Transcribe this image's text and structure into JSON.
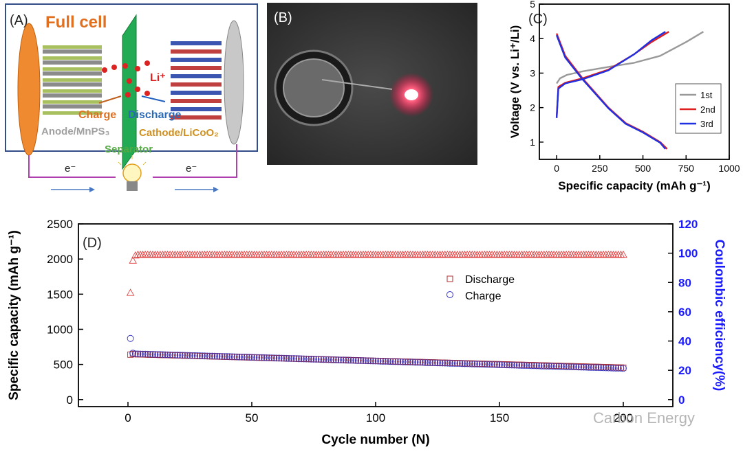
{
  "panel_a": {
    "label": "(A)",
    "title": "Full cell",
    "ion": "Li⁺",
    "charge": "Charge",
    "discharge": "Discharge",
    "anode": "Anode/MnPS₃",
    "cathode": "Cathode/LiCoO₂",
    "separator": "Separator",
    "electron": "e⁻",
    "colors": {
      "title": "#e07020",
      "anode": "#f08a30",
      "separator": "#22aa55",
      "ion": "#dd2222"
    }
  },
  "panel_b": {
    "label": "(B)"
  },
  "chart_data": [
    {
      "type": "line",
      "label": "(C)",
      "xlabel": "Specific capacity (mAh g⁻¹)",
      "ylabel": "Voltage (V vs. Li⁺/Li)",
      "xlim": [
        -100,
        1000
      ],
      "ylim": [
        0.5,
        5
      ],
      "x_ticks": [
        "0",
        "250",
        "500",
        "750",
        "1000"
      ],
      "y_ticks": [
        "1",
        "2",
        "3",
        "4",
        "5"
      ],
      "legend": "right",
      "series": [
        {
          "name": "1st",
          "color": "#999999",
          "charge": [
            [
              0,
              2.7
            ],
            [
              20,
              2.85
            ],
            [
              60,
              2.95
            ],
            [
              150,
              3.05
            ],
            [
              300,
              3.18
            ],
            [
              450,
              3.3
            ],
            [
              600,
              3.5
            ],
            [
              750,
              3.9
            ],
            [
              850,
              4.2
            ]
          ]
        },
        {
          "name": "2nd",
          "color": "#e02020",
          "charge": [
            [
              0,
              1.7
            ],
            [
              10,
              2.6
            ],
            [
              50,
              2.72
            ],
            [
              150,
              2.85
            ],
            [
              300,
              3.1
            ],
            [
              450,
              3.55
            ],
            [
              550,
              3.9
            ],
            [
              650,
              4.2
            ]
          ],
          "discharge": [
            [
              0,
              4.15
            ],
            [
              50,
              3.5
            ],
            [
              150,
              2.85
            ],
            [
              300,
              2.0
            ],
            [
              400,
              1.55
            ],
            [
              500,
              1.3
            ],
            [
              600,
              1.0
            ],
            [
              640,
              0.8
            ]
          ]
        },
        {
          "name": "3rd",
          "color": "#2030e0",
          "charge": [
            [
              0,
              1.7
            ],
            [
              10,
              2.55
            ],
            [
              50,
              2.7
            ],
            [
              150,
              2.82
            ],
            [
              300,
              3.08
            ],
            [
              450,
              3.55
            ],
            [
              550,
              3.95
            ],
            [
              630,
              4.2
            ]
          ],
          "discharge": [
            [
              0,
              4.1
            ],
            [
              50,
              3.45
            ],
            [
              150,
              2.82
            ],
            [
              300,
              1.98
            ],
            [
              400,
              1.53
            ],
            [
              500,
              1.28
            ],
            [
              600,
              0.98
            ],
            [
              630,
              0.8
            ]
          ]
        }
      ]
    },
    {
      "type": "scatter",
      "label": "(D)",
      "xlabel": "Cycle number (N)",
      "ylabel": "Specific capacity (mAh g⁻¹)",
      "y2label": "Coulombic efficiency(%)",
      "xlim": [
        -20,
        220
      ],
      "ylim": [
        -100,
        2500
      ],
      "y2lim": [
        0,
        120
      ],
      "x_ticks": [
        "0",
        "50",
        "100",
        "150",
        "200"
      ],
      "y_ticks": [
        "0",
        "500",
        "1000",
        "1500",
        "2000",
        "2500"
      ],
      "y2_ticks": [
        "0",
        "20",
        "40",
        "60",
        "80",
        "100",
        "120"
      ],
      "legend": "top-right",
      "series": [
        {
          "name": "Discharge",
          "marker": "square",
          "color": "#b03030",
          "first": [
            [
              1,
              640
            ],
            [
              2,
              650
            ]
          ],
          "start": 645,
          "end": 455
        },
        {
          "name": "Charge",
          "marker": "circle",
          "color": "#3030c0",
          "first": [
            [
              1,
              870
            ],
            [
              2,
              660
            ]
          ],
          "start": 650,
          "end": 445
        },
        {
          "name": "Coulombic efficiency",
          "marker": "triangle",
          "color": "#e04040",
          "first": [
            [
              1,
              73
            ],
            [
              2,
              95
            ],
            [
              3,
              98.5
            ]
          ],
          "value": 99
        }
      ]
    }
  ],
  "watermark": "Carbon Energy"
}
